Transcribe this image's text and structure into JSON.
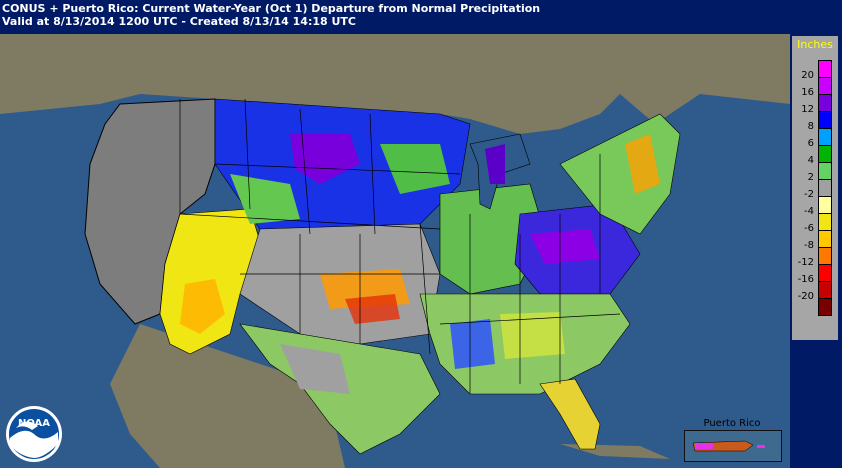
{
  "header": {
    "line1": "CONUS + Puerto Rico: Current Water-Year (Oct 1) Departure from Normal Precipitation",
    "line2": "Valid at 8/13/2014 1200 UTC - Created 8/13/14 14:18 UTC"
  },
  "legend": {
    "title": "Inches",
    "entries": [
      {
        "label": "20",
        "color": "#ff00ff"
      },
      {
        "label": "16",
        "color": "#c800ff"
      },
      {
        "label": "12",
        "color": "#7800dc"
      },
      {
        "label": "8",
        "color": "#0000ff"
      },
      {
        "label": "6",
        "color": "#00a0ff"
      },
      {
        "label": "4",
        "color": "#00b400"
      },
      {
        "label": "2",
        "color": "#64d264"
      },
      {
        "label": "-2",
        "color": "#a0a0a0"
      },
      {
        "label": "-4",
        "color": "#ffffa0"
      },
      {
        "label": "-6",
        "color": "#f0e614"
      },
      {
        "label": "-8",
        "color": "#ffc800"
      },
      {
        "label": "-12",
        "color": "#ff7800"
      },
      {
        "label": "-16",
        "color": "#ff0000"
      },
      {
        "label": "-20",
        "color": "#c80000"
      },
      {
        "label": "",
        "color": "#780000"
      }
    ]
  },
  "inset": {
    "title": "Puerto Rico"
  },
  "colors": {
    "ocean": "#2f5a8c",
    "land_outside": "#7a7a6a",
    "no_data": "#808080",
    "state_border": "#000000"
  },
  "logo": {
    "name": "NOAA",
    "text": "NOAA"
  }
}
